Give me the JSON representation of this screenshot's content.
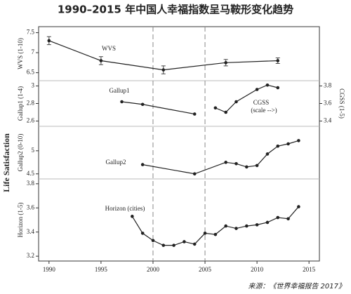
{
  "title": "1990–2015 年中国人幸福指数呈马鞍形变化趋势",
  "y_label": "Life Satisfaction",
  "source": "来源：《世界幸福报告 2017》",
  "reference_lines": [
    2000,
    2005
  ],
  "chart_data": [
    {
      "type": "line",
      "y_label": "WVS (1-10)",
      "xlim": [
        1989,
        2016
      ],
      "ylim": [
        6.3,
        7.65
      ],
      "yticks": [
        6.5,
        7.0,
        7.5
      ],
      "series": [
        {
          "name": "WVS",
          "color": "#222222",
          "x": [
            1990,
            1995,
            2001,
            2007,
            2012
          ],
          "values": [
            7.3,
            6.8,
            6.57,
            6.75,
            6.8
          ],
          "errors": [
            0.1,
            0.1,
            0.1,
            0.08,
            0.07
          ]
        }
      ]
    },
    {
      "type": "line",
      "y_label": "Gallup1 (1-4)",
      "y2_label": "CGSS (1-5)",
      "xlim": [
        1989,
        2016
      ],
      "ylim": [
        2.54,
        3.06
      ],
      "yticks": [
        2.6,
        2.8,
        3.0
      ],
      "y2lim": [
        3.34,
        3.86
      ],
      "y2ticks": [
        3.4,
        3.6,
        3.8
      ],
      "series": [
        {
          "name": "Gallup1",
          "color": "#222222",
          "x": [
            1997,
            1999,
            2004
          ],
          "values": [
            2.82,
            2.79,
            2.68
          ]
        },
        {
          "name": "CGSS",
          "note": "(scale -->)",
          "axis": "y2",
          "color": "#222222",
          "x": [
            2006,
            2007,
            2008,
            2010,
            2011,
            2012
          ],
          "values": [
            3.55,
            3.5,
            3.62,
            3.76,
            3.81,
            3.78
          ]
        }
      ]
    },
    {
      "type": "line",
      "y_label": "Gallup2 (0-10)",
      "xlim": [
        1989,
        2016
      ],
      "ylim": [
        4.39,
        5.53
      ],
      "yticks": [
        4.5,
        5.0
      ],
      "series": [
        {
          "name": "Gallup2",
          "color": "#222222",
          "x": [
            1999,
            2004,
            2007,
            2008,
            2009,
            2010,
            2011,
            2012,
            2013,
            2014
          ],
          "values": [
            4.7,
            4.5,
            4.75,
            4.72,
            4.65,
            4.68,
            4.93,
            5.1,
            5.15,
            5.22
          ]
        }
      ]
    },
    {
      "type": "line",
      "y_label": "Horizon (1-5)",
      "xlim": [
        1989,
        2016
      ],
      "ylim": [
        3.16,
        3.84
      ],
      "yticks": [
        3.2,
        3.4,
        3.6,
        3.8
      ],
      "xticks": [
        1990,
        1995,
        2000,
        2005,
        2010,
        2015
      ],
      "series": [
        {
          "name": "Horizon (cities)",
          "color": "#222222",
          "x": [
            1998,
            1999,
            2000,
            2001,
            2002,
            2003,
            2004,
            2005,
            2006,
            2007,
            2008,
            2009,
            2010,
            2011,
            2012,
            2013,
            2014
          ],
          "values": [
            3.53,
            3.39,
            3.33,
            3.29,
            3.29,
            3.32,
            3.3,
            3.39,
            3.38,
            3.45,
            3.43,
            3.45,
            3.46,
            3.48,
            3.52,
            3.51,
            3.61
          ]
        }
      ]
    }
  ]
}
